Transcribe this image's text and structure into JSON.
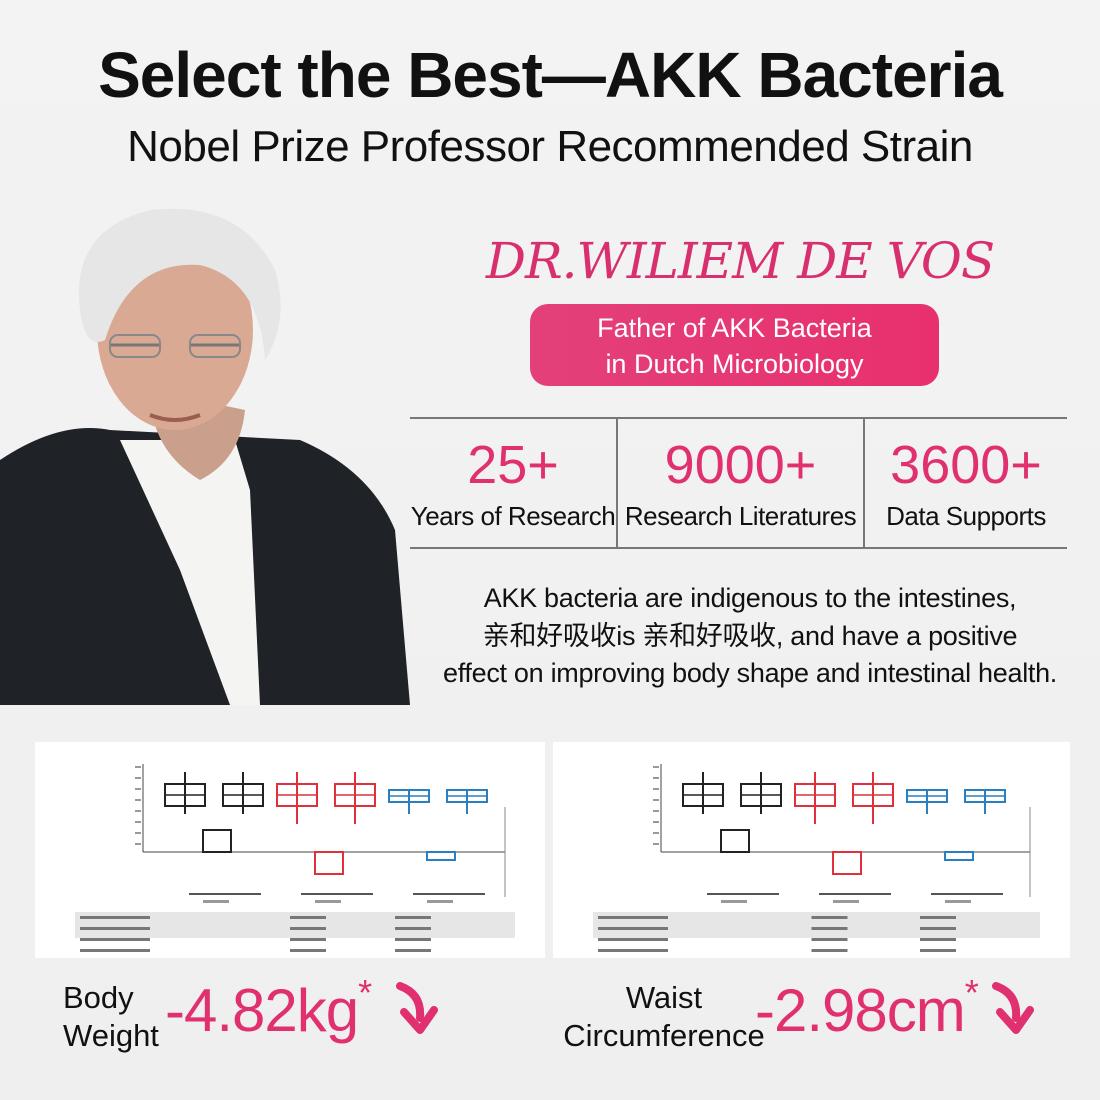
{
  "header": {
    "title": "Select the Best—AKK Bacteria",
    "subtitle": "Nobel Prize Professor Recommended Strain"
  },
  "profile": {
    "name": "DR.WILIEM DE VOS",
    "badge_line1": "Father of AKK Bacteria",
    "badge_line2": "in Dutch Microbiology"
  },
  "stats": [
    {
      "value": "25+",
      "label": "Years of Research"
    },
    {
      "value": "9000+",
      "label": "Research Literatures"
    },
    {
      "value": "3600+",
      "label": "Data Supports"
    }
  ],
  "description": {
    "line1": "AKK bacteria are indigenous to the intestines,",
    "line2": "亲和好吸收is 亲和好吸收, and have a positive",
    "line3": "effect on improving body shape and intestinal health."
  },
  "results": [
    {
      "label_line1": "Body",
      "label_line2": "Weight",
      "value": "-4.82kg",
      "mark": "*",
      "icon": "arrow-down-icon"
    },
    {
      "label_line1": "Waist",
      "label_line2": "Circumference",
      "value": "-2.98cm",
      "mark": "*",
      "icon": "arrow-down-icon"
    }
  ],
  "colors": {
    "accent": "#e0306f",
    "group_colors": [
      "#222222",
      "#e0303c",
      "#2a7fc0"
    ]
  }
}
